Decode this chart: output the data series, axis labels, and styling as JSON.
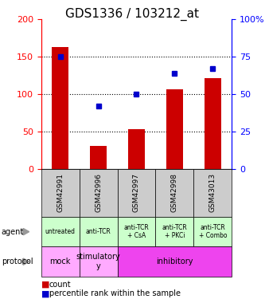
{
  "title": "GDS1336 / 103212_at",
  "samples": [
    "GSM42991",
    "GSM42996",
    "GSM42997",
    "GSM42998",
    "GSM43013"
  ],
  "counts": [
    163,
    31,
    53,
    107,
    121
  ],
  "percentile_ranks": [
    75,
    42,
    50,
    64,
    67
  ],
  "ylim_left": [
    0,
    200
  ],
  "ylim_right": [
    0,
    100
  ],
  "yticks_left": [
    0,
    50,
    100,
    150,
    200
  ],
  "yticks_right": [
    0,
    25,
    50,
    75,
    100
  ],
  "ytick_labels_right": [
    "0",
    "25",
    "50",
    "75",
    "100%"
  ],
  "bar_color": "#cc0000",
  "dot_color": "#0000cc",
  "agent_labels": [
    "untreated",
    "anti-TCR",
    "anti-TCR\n+ CsA",
    "anti-TCR\n+ PKCi",
    "anti-TCR\n+ Combo"
  ],
  "protocol_configs": [
    [
      0,
      1,
      "mock",
      "#ffaaff"
    ],
    [
      1,
      2,
      "stimulatory\ny",
      "#ffaaff"
    ],
    [
      2,
      5,
      "inhibitory",
      "#ee44ee"
    ]
  ],
  "agent_bg": "#ccffcc",
  "sample_bg": "#cccccc",
  "title_fontsize": 11,
  "tick_fontsize": 8,
  "sample_fontsize": 6.5,
  "agent_fontsize": 5.5,
  "protocol_fontsize": 7,
  "row_label_fontsize": 7,
  "legend_fontsize": 7
}
